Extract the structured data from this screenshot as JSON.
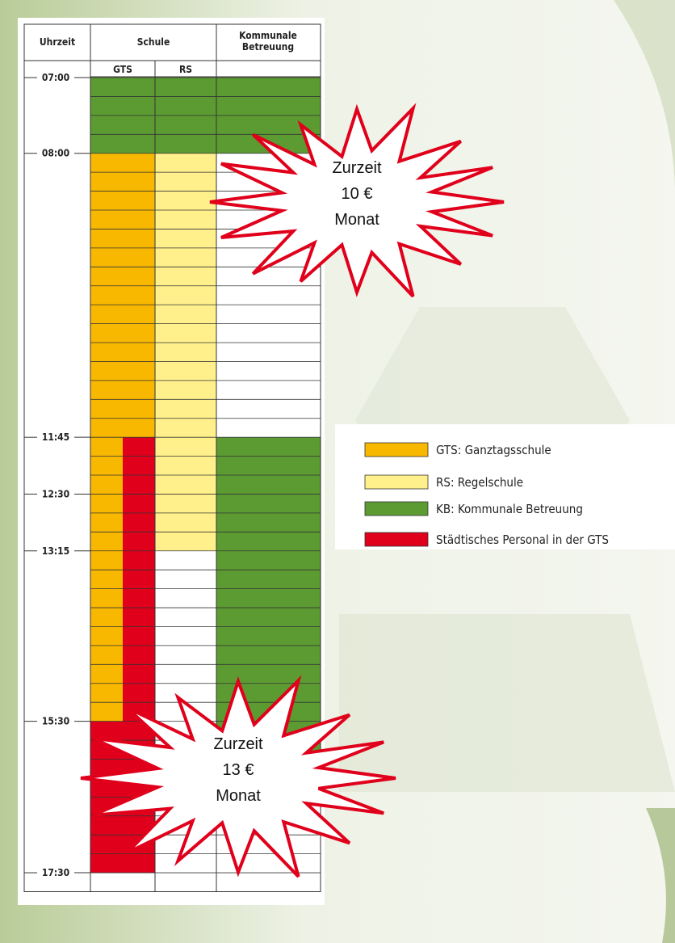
{
  "table": {
    "headers": [
      "Uhrzeit",
      "Schule",
      [
        "Kommunale",
        "Betreuung"
      ]
    ],
    "subheaders": [
      "GTS",
      "RS"
    ],
    "times": [
      "07:00",
      "08:00",
      "11:45",
      "12:30",
      "13:15",
      "15:30",
      "17:30"
    ]
  },
  "legend": [
    {
      "label": "GTS: Ganztagsschule",
      "color": "#f9b800"
    },
    {
      "label": "RS: Regelschule",
      "color": "#fff08c"
    },
    {
      "label": "KB: Kommunale Betreuung",
      "color": "#5c9b32"
    },
    {
      "label": "Städtisches Personal in der GTS",
      "color": "#e0001b"
    }
  ],
  "callouts": [
    {
      "lines": [
        "Zurzeit",
        "10 €",
        "Monat"
      ]
    },
    {
      "lines": [
        "Zurzeit",
        "13 €",
        "Monat"
      ]
    }
  ]
}
